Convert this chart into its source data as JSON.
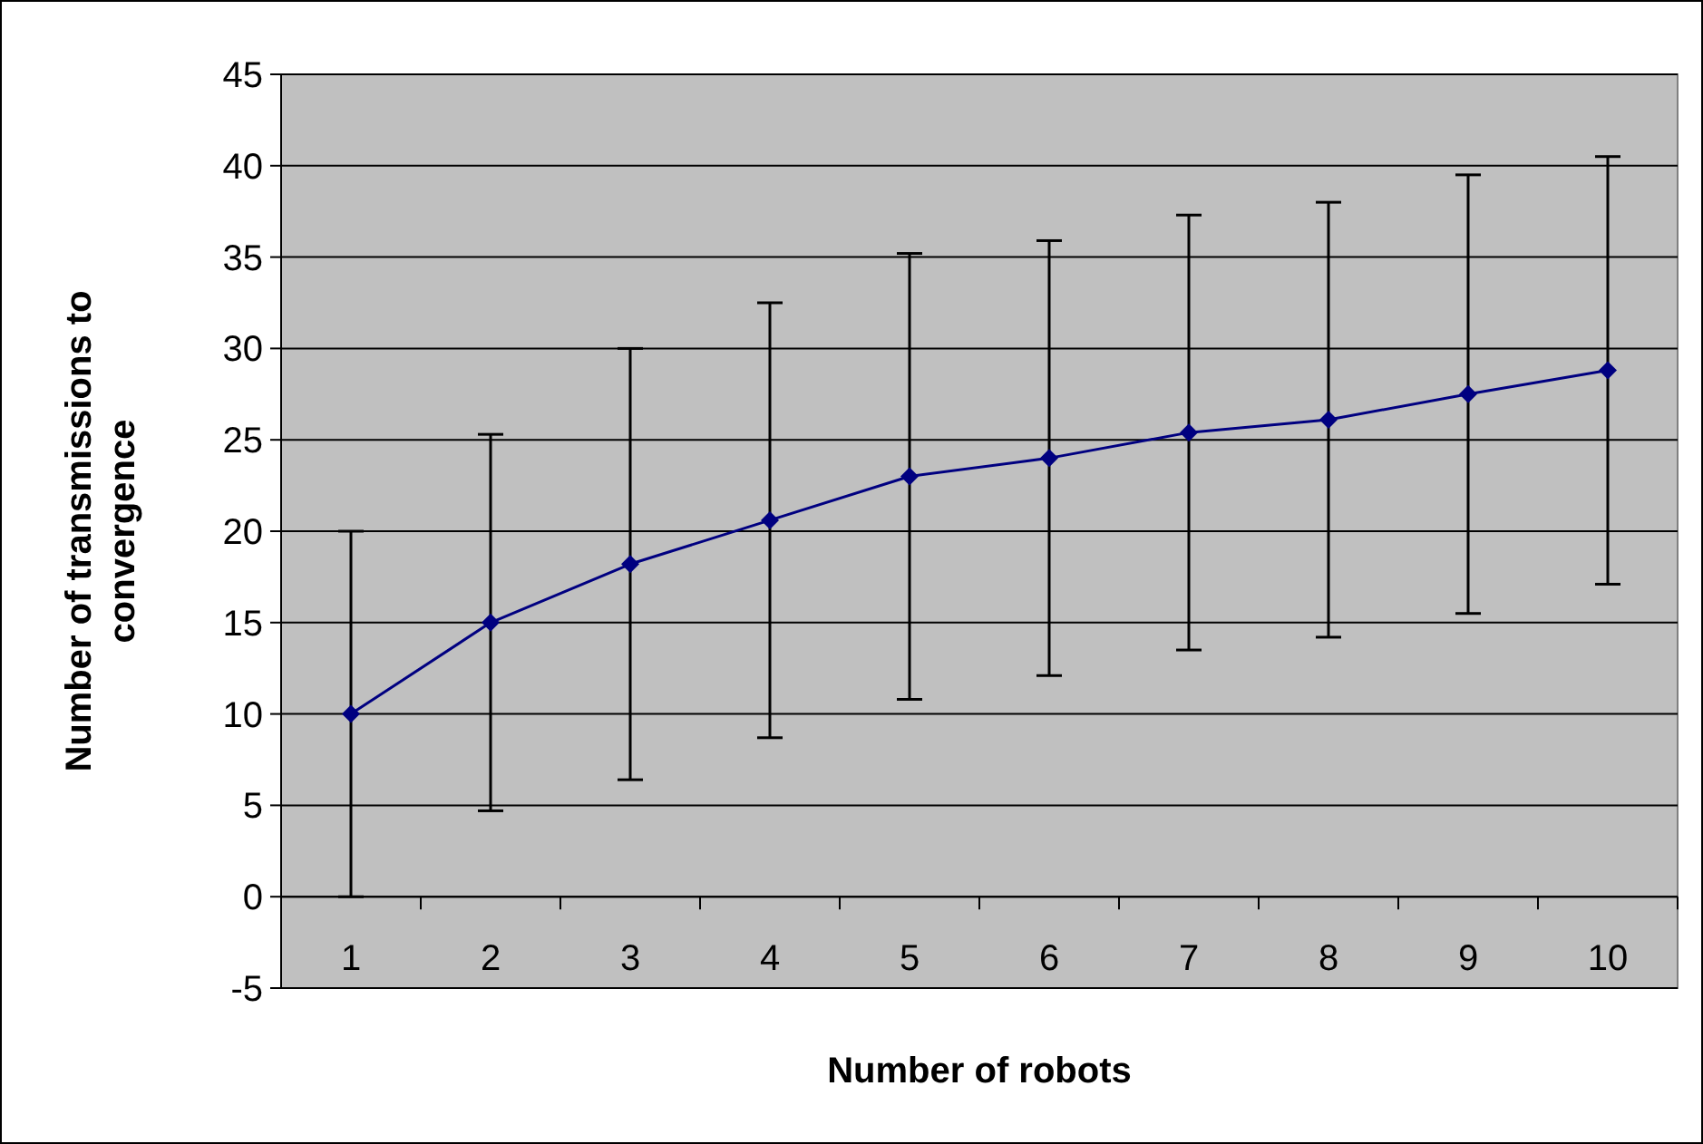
{
  "chart_data": {
    "type": "line",
    "xlabel": "Number of robots",
    "ylabel": "Number of transmissions to convergence",
    "categories": [
      "1",
      "2",
      "3",
      "4",
      "5",
      "6",
      "7",
      "8",
      "9",
      "10"
    ],
    "series": [
      {
        "color": "#000080",
        "values": [
          10.0,
          15.0,
          18.2,
          20.6,
          23.0,
          24.0,
          25.4,
          26.1,
          27.5,
          28.8
        ],
        "errors": [
          10.0,
          10.3,
          11.8,
          11.9,
          12.2,
          11.9,
          11.9,
          11.9,
          12.0,
          11.7
        ]
      }
    ],
    "ylim": [
      -5,
      45
    ],
    "yticks": [
      -5,
      0,
      5,
      10,
      15,
      20,
      25,
      30,
      35,
      40,
      45
    ],
    "grid": "y",
    "marker": "diamond",
    "line_style": "solid"
  }
}
